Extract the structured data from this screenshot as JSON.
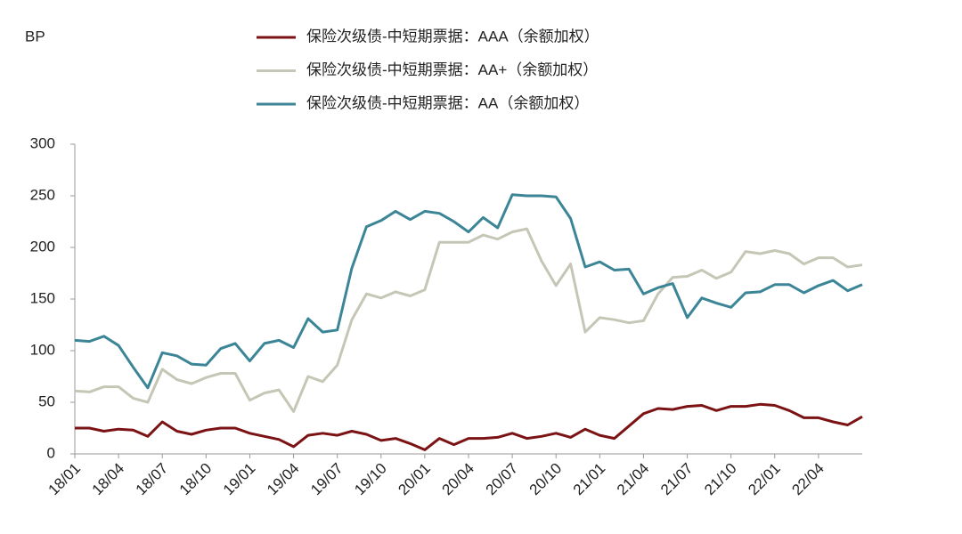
{
  "chart_data": {
    "type": "line",
    "y_label": "BP",
    "categories": [
      "18/01",
      null,
      null,
      "18/04",
      null,
      null,
      "18/07",
      null,
      null,
      "18/10",
      null,
      null,
      "19/01",
      null,
      null,
      "19/04",
      null,
      null,
      "19/07",
      null,
      null,
      "19/10",
      null,
      null,
      "20/01",
      null,
      null,
      "20/04",
      null,
      null,
      "20/07",
      null,
      null,
      "20/10",
      null,
      null,
      "21/01",
      null,
      null,
      "21/04",
      null,
      null,
      "21/07",
      null,
      null,
      "21/10",
      null,
      null,
      "22/01",
      null,
      null,
      "22/04",
      null,
      null,
      null
    ],
    "series": [
      {
        "name": "保险次级债-中短期票据：AAA（余额加权）",
        "color": "#7b1214",
        "values": [
          25,
          25,
          22,
          24,
          23,
          17,
          31,
          22,
          19,
          23,
          25,
          25,
          20,
          17,
          14,
          7,
          18,
          20,
          18,
          22,
          19,
          13,
          15,
          10,
          4,
          15,
          9,
          15,
          15,
          16,
          20,
          15,
          17,
          20,
          16,
          24,
          18,
          15,
          27,
          39,
          44,
          43,
          46,
          47,
          42,
          46,
          46,
          48,
          47,
          42,
          35,
          35,
          31,
          28,
          36
        ]
      },
      {
        "name": "保险次级债-中短期票据：AA+（余额加权）",
        "color": "#c6c6b6",
        "values": [
          61,
          60,
          65,
          65,
          54,
          50,
          82,
          72,
          68,
          74,
          78,
          78,
          52,
          59,
          62,
          41,
          75,
          70,
          86,
          130,
          155,
          151,
          157,
          153,
          159,
          205,
          205,
          205,
          212,
          208,
          215,
          218,
          187,
          163,
          184,
          118,
          132,
          130,
          127,
          129,
          155,
          171,
          172,
          178,
          170,
          176,
          196,
          194,
          197,
          194,
          184,
          190,
          190,
          181,
          183
        ]
      },
      {
        "name": "保险次级债-中短期票据：AA（余额加权）",
        "color": "#3b8596",
        "values": [
          110,
          109,
          114,
          105,
          84,
          64,
          98,
          95,
          87,
          86,
          102,
          107,
          90,
          107,
          110,
          103,
          131,
          118,
          120,
          180,
          220,
          226,
          235,
          227,
          235,
          233,
          225,
          215,
          229,
          219,
          251,
          250,
          250,
          249,
          228,
          181,
          186,
          178,
          179,
          155,
          161,
          165,
          132,
          151,
          146,
          142,
          156,
          157,
          164,
          164,
          156,
          163,
          168,
          158,
          164
        ]
      }
    ],
    "ylim": [
      0,
      300
    ],
    "yticks": [
      0,
      50,
      100,
      150,
      200,
      250,
      300
    ],
    "grid": false
  }
}
